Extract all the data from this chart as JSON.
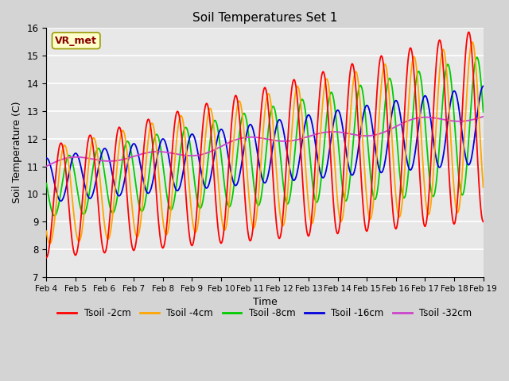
{
  "title": "Soil Temperatures Set 1",
  "xlabel": "Time",
  "ylabel": "Soil Temperature (C)",
  "ylim": [
    7.0,
    16.0
  ],
  "yticks": [
    7.0,
    8.0,
    9.0,
    10.0,
    11.0,
    12.0,
    13.0,
    14.0,
    15.0,
    16.0
  ],
  "colors": {
    "Tsoil -2cm": "#ff0000",
    "Tsoil -4cm": "#ffa500",
    "Tsoil -8cm": "#00cc00",
    "Tsoil -16cm": "#0000dd",
    "Tsoil -32cm": "#cc44cc"
  },
  "xtick_labels": [
    "Feb 4",
    "Feb 5",
    "Feb 6",
    "Feb 7",
    "Feb 8",
    "Feb 9",
    "Feb 10",
    "Feb 11",
    "Feb 12",
    "Feb 13",
    "Feb 14",
    "Feb 15",
    "Feb 16",
    "Feb 17",
    "Feb 18",
    "Feb 19"
  ],
  "legend_labels": [
    "Tsoil -2cm",
    "Tsoil -4cm",
    "Tsoil -8cm",
    "Tsoil -16cm",
    "Tsoil -32cm"
  ],
  "annotation_text": "VR_met",
  "annotation_color": "#8b0000",
  "annotation_bgcolor": "#ffffcc",
  "fig_facecolor": "#d4d4d4",
  "ax_facecolor": "#e8e8e8",
  "grid_color": "#ffffff"
}
